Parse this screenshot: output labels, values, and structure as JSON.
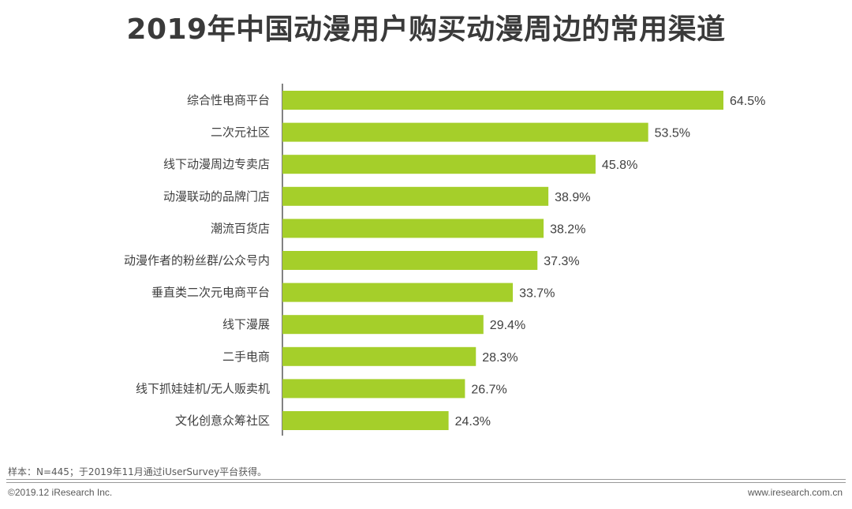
{
  "title": "2019年中国动漫用户购买动漫周边的常用渠道",
  "source_note": "样本：N=445；于2019年11月通过iUserSurvey平台获得。",
  "copyright": "©2019.12 iResearch Inc.",
  "website": "www.iresearch.com.cn",
  "chart_data": {
    "type": "bar",
    "orientation": "horizontal",
    "title": "2019年中国动漫用户购买动漫周边的常用渠道",
    "categories": [
      "综合性电商平台",
      "二次元社区",
      "线下动漫周边专卖店",
      "动漫联动的品牌门店",
      "潮流百货店",
      "动漫作者的粉丝群/公众号内",
      "垂直类二次元电商平台",
      "线下漫展",
      "二手电商",
      "线下抓娃娃机/无人贩卖机",
      "文化创意众筹社区"
    ],
    "values": [
      64.5,
      53.5,
      45.8,
      38.9,
      38.2,
      37.3,
      33.7,
      29.4,
      28.3,
      26.7,
      24.3
    ],
    "labels": [
      "64.5%",
      "53.5%",
      "45.8%",
      "38.9%",
      "38.2%",
      "37.3%",
      "33.7%",
      "29.4%",
      "28.3%",
      "26.7%",
      "24.3%"
    ],
    "unit": "%",
    "xlim": [
      0,
      64.5
    ],
    "grid": false,
    "legend": "none",
    "bar_color": "#a5cf2a",
    "axis_color": "#595959"
  }
}
